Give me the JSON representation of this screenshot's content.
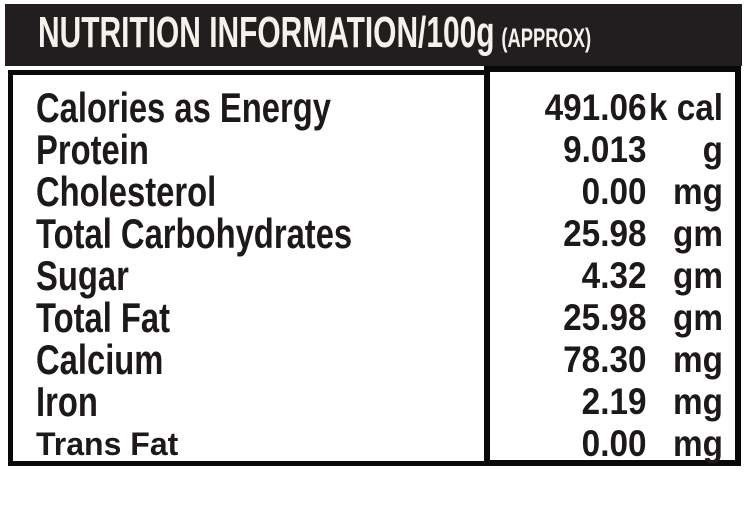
{
  "header": {
    "title": "NUTRITION INFORMATION/100g",
    "approx": "(APPROX)"
  },
  "table": {
    "rows": [
      {
        "label": "Calories as Energy",
        "value": "491.06",
        "unit": "k cal",
        "label_style": "condensed"
      },
      {
        "label": "Protein",
        "value": "9.013",
        "unit": "g",
        "label_style": "condensed"
      },
      {
        "label": "Cholesterol",
        "value": "0.00",
        "unit": "mg",
        "label_style": "condensed"
      },
      {
        "label": "Total Carbohydrates",
        "value": "25.98",
        "unit": "gm",
        "label_style": "condensed"
      },
      {
        "label": "Sugar",
        "value": "4.32",
        "unit": "gm",
        "label_style": "condensed"
      },
      {
        "label": "Total Fat",
        "value": "25.98",
        "unit": "gm",
        "label_style": "condensed"
      },
      {
        "label": "Calcium",
        "value": "78.30",
        "unit": "mg",
        "label_style": "condensed"
      },
      {
        "label": "Iron",
        "value": "2.19",
        "unit": "mg",
        "label_style": "condensed"
      },
      {
        "label": "Trans Fat",
        "value": "0.00",
        "unit": "mg",
        "label_style": "plain"
      }
    ]
  },
  "colors": {
    "header_bg": "#221e1f",
    "header_text": "#f5f2ee",
    "text": "#1d191a",
    "border": "#0a0908",
    "background": "#ffffff"
  }
}
